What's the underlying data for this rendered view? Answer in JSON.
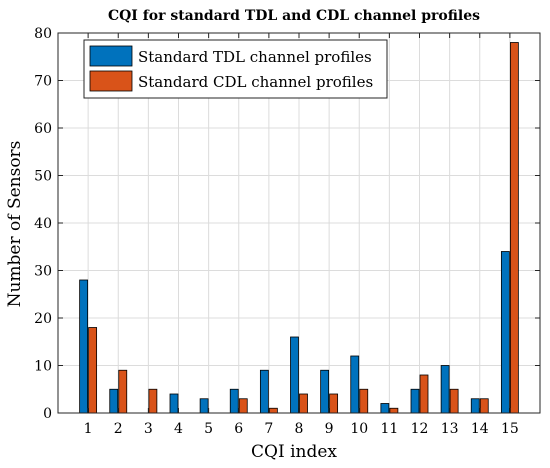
{
  "chart_data": {
    "type": "bar",
    "title": "CQI for standard TDL and CDL channel profiles",
    "xlabel": "CQI index",
    "ylabel": "Number of Sensors",
    "categories": [
      "1",
      "2",
      "3",
      "4",
      "5",
      "6",
      "7",
      "8",
      "9",
      "10",
      "11",
      "12",
      "13",
      "14",
      "15"
    ],
    "series": [
      {
        "name": "Standard TDL channel profiles",
        "color": "#0072BD",
        "values": [
          28,
          5,
          0,
          4,
          3,
          5,
          9,
          16,
          9,
          12,
          2,
          5,
          10,
          3,
          34
        ]
      },
      {
        "name": "Standard CDL channel profiles",
        "color": "#D95319",
        "values": [
          18,
          9,
          5,
          0,
          0,
          3,
          1,
          4,
          4,
          5,
          1,
          8,
          5,
          3,
          78
        ]
      }
    ],
    "ylim": [
      0,
      80
    ],
    "yticks": [
      0,
      10,
      20,
      30,
      40,
      50,
      60,
      70,
      80
    ],
    "grid": true,
    "legend_position": "top-left"
  }
}
